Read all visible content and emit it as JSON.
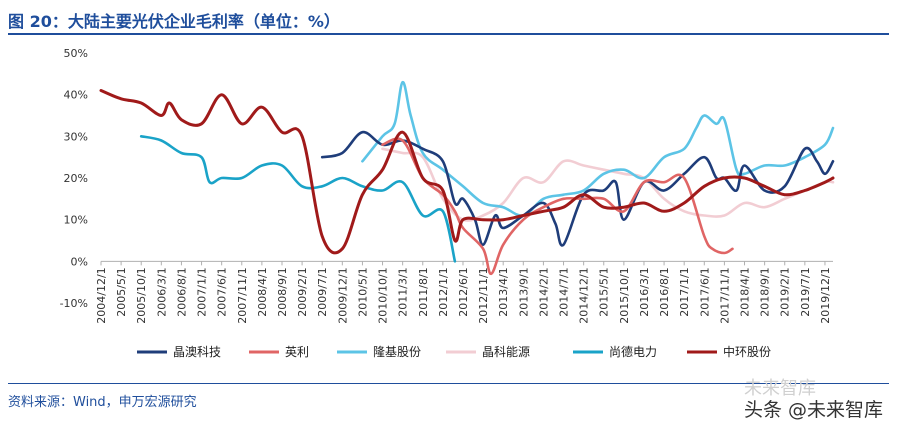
{
  "header": {
    "title": "图 20：大陆主要光伏企业毛利率（单位：%）"
  },
  "footer": {
    "source": "资料来源：Wind，申万宏源研究",
    "watermark": "头条 @未来智库",
    "watermark_faint": "未来智库"
  },
  "chart_data": {
    "type": "line",
    "title": "图 20：大陆主要光伏企业毛利率（单位：%）",
    "xlabel": "",
    "ylabel": "",
    "ylim": [
      -10,
      50
    ],
    "y_ticks": [
      "50%",
      "40%",
      "30%",
      "20%",
      "10%",
      "0%",
      "-10%"
    ],
    "y_tick_values": [
      50,
      40,
      30,
      20,
      10,
      0,
      -10
    ],
    "x_ticks": [
      "2004/12/1",
      "2005/5/1",
      "2005/10/1",
      "2006/3/1",
      "2006/8/1",
      "2007/1/1",
      "2007/6/1",
      "2007/11/1",
      "2008/4/1",
      "2008/9/1",
      "2009/2/1",
      "2009/7/1",
      "2009/12/1",
      "2010/5/1",
      "2010/10/1",
      "2011/3/1",
      "2011/8/1",
      "2012/1/1",
      "2012/6/1",
      "2012/11/1",
      "2013/4/1",
      "2013/9/1",
      "2014/2/1",
      "2014/7/1",
      "2014/12/1",
      "2015/5/1",
      "2015/10/1",
      "2016/3/1",
      "2016/8/1",
      "2017/1/1",
      "2017/6/1",
      "2017/11/1",
      "2018/4/1",
      "2018/9/1",
      "2019/2/1",
      "2019/7/1",
      "2019/12/1"
    ],
    "grid": false,
    "legend_position": "bottom",
    "series": [
      {
        "name": "晶澳科技",
        "color": "#1f3d7a",
        "x": [
          "2009/7/1",
          "2009/12/1",
          "2010/5/1",
          "2010/10/1",
          "2011/3/1",
          "2011/8/1",
          "2012/1/1",
          "2012/4/1",
          "2012/6/1",
          "2012/9/1",
          "2012/11/1",
          "2013/2/1",
          "2013/4/1",
          "2013/9/1",
          "2014/2/1",
          "2014/5/1",
          "2014/7/1",
          "2014/12/1",
          "2015/5/1",
          "2015/8/1",
          "2015/10/1",
          "2016/3/1",
          "2016/8/1",
          "2017/1/1",
          "2017/6/1",
          "2017/9/1",
          "2017/11/1",
          "2018/2/1",
          "2018/4/1",
          "2018/9/1",
          "2019/2/1",
          "2019/7/1",
          "2019/10/1",
          "2019/12/1",
          "2020/2/1"
        ],
        "values": [
          25,
          26,
          31,
          28,
          29,
          27,
          24,
          14,
          15,
          10,
          4,
          11,
          8,
          11,
          14,
          9,
          4,
          16,
          17,
          19,
          10,
          19,
          17,
          21,
          25,
          20,
          20,
          17,
          23,
          17,
          18,
          27,
          24,
          21,
          24
        ]
      },
      {
        "name": "英利",
        "color": "#e06565",
        "x": [
          "2010/10/1",
          "2011/3/1",
          "2011/8/1",
          "2012/1/1",
          "2012/4/1",
          "2012/6/1",
          "2012/11/1",
          "2013/1/1",
          "2013/4/1",
          "2013/9/1",
          "2014/2/1",
          "2014/7/1",
          "2014/12/1",
          "2015/5/1",
          "2015/10/1",
          "2016/3/1",
          "2016/8/1",
          "2017/1/1",
          "2017/6/1",
          "2017/8/1",
          "2017/11/1",
          "2018/1/1"
        ],
        "values": [
          28,
          29,
          20,
          16,
          12,
          8,
          3,
          -3,
          4,
          10,
          13,
          15,
          15,
          15,
          12,
          19,
          19,
          20,
          6,
          3,
          2,
          3
        ]
      },
      {
        "name": "隆基股份",
        "color": "#5cc4e6",
        "x": [
          "2010/5/1",
          "2010/10/1",
          "2011/1/1",
          "2011/3/1",
          "2011/5/1",
          "2011/8/1",
          "2012/1/1",
          "2012/6/1",
          "2012/11/1",
          "2013/4/1",
          "2013/9/1",
          "2014/2/1",
          "2014/7/1",
          "2014/12/1",
          "2015/5/1",
          "2015/10/1",
          "2016/3/1",
          "2016/8/1",
          "2017/1/1",
          "2017/4/1",
          "2017/6/1",
          "2017/9/1",
          "2017/11/1",
          "2018/2/1",
          "2018/4/1",
          "2018/9/1",
          "2019/2/1",
          "2019/7/1",
          "2019/12/1",
          "2020/2/1"
        ],
        "values": [
          24,
          30,
          33,
          43,
          35,
          26,
          22,
          18,
          14,
          13,
          11,
          15,
          16,
          17,
          21,
          22,
          20,
          25,
          27,
          32,
          35,
          33,
          34,
          22,
          21,
          23,
          23,
          25,
          28,
          32
        ]
      },
      {
        "name": "晶科能源",
        "color": "#f2cdd3",
        "x": [
          "2010/10/1",
          "2011/3/1",
          "2011/8/1",
          "2012/1/1",
          "2012/6/1",
          "2012/11/1",
          "2013/4/1",
          "2013/9/1",
          "2014/2/1",
          "2014/7/1",
          "2014/12/1",
          "2015/5/1",
          "2015/10/1",
          "2016/3/1",
          "2016/8/1",
          "2017/1/1",
          "2017/6/1",
          "2017/11/1",
          "2018/4/1",
          "2018/9/1",
          "2019/2/1",
          "2019/7/1",
          "2019/12/1",
          "2020/2/1"
        ],
        "values": [
          27,
          26,
          25,
          15,
          10,
          11,
          14,
          20,
          19,
          24,
          23,
          22,
          21,
          20,
          15,
          12,
          11,
          11,
          14,
          13,
          15,
          17,
          19,
          19
        ]
      },
      {
        "name": "尚德电力",
        "color": "#1aa3c8",
        "x": [
          "2005/10/1",
          "2006/3/1",
          "2006/8/1",
          "2007/1/1",
          "2007/3/1",
          "2007/6/1",
          "2007/11/1",
          "2008/4/1",
          "2008/9/1",
          "2009/2/1",
          "2009/7/1",
          "2009/12/1",
          "2010/5/1",
          "2010/10/1",
          "2011/3/1",
          "2011/8/1",
          "2012/1/1",
          "2012/4/1"
        ],
        "values": [
          30,
          29,
          26,
          25,
          19,
          20,
          20,
          23,
          23,
          18,
          18,
          20,
          18,
          17,
          19,
          11,
          12,
          0
        ]
      },
      {
        "name": "中环股份",
        "color": "#a01a1a",
        "x": [
          "2004/12/1",
          "2005/5/1",
          "2005/10/1",
          "2006/3/1",
          "2006/5/1",
          "2006/8/1",
          "2007/1/1",
          "2007/6/1",
          "2007/11/1",
          "2008/4/1",
          "2008/9/1",
          "2009/2/1",
          "2009/7/1",
          "2009/12/1",
          "2010/5/1",
          "2010/10/1",
          "2011/3/1",
          "2011/8/1",
          "2012/1/1",
          "2012/4/1",
          "2012/6/1",
          "2012/11/1",
          "2013/4/1",
          "2013/9/1",
          "2014/2/1",
          "2014/7/1",
          "2014/12/1",
          "2015/5/1",
          "2015/10/1",
          "2016/3/1",
          "2016/8/1",
          "2017/1/1",
          "2017/6/1",
          "2017/11/1",
          "2018/4/1",
          "2018/9/1",
          "2019/2/1",
          "2019/7/1",
          "2019/12/1",
          "2020/2/1"
        ],
        "values": [
          41,
          39,
          38,
          35,
          38,
          34,
          33,
          40,
          33,
          37,
          31,
          30,
          6,
          3,
          16,
          22,
          31,
          20,
          17,
          5,
          10,
          10,
          10,
          11,
          12,
          13,
          16,
          13,
          13,
          14,
          12,
          14,
          18,
          20,
          20,
          18,
          16,
          17,
          19,
          20
        ]
      }
    ]
  }
}
